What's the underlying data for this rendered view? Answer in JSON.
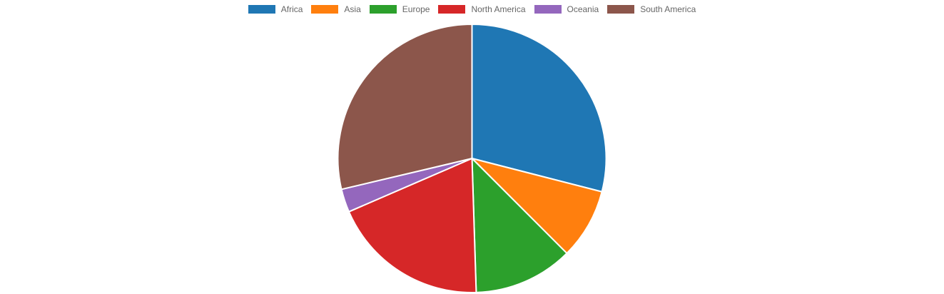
{
  "chart_data": {
    "type": "pie",
    "legend_position": "top",
    "categories": [
      "Africa",
      "Asia",
      "Europe",
      "North America",
      "Oceania",
      "South America"
    ],
    "values": [
      29.0,
      8.5,
      12.0,
      19.0,
      2.8,
      28.7
    ],
    "colors": [
      "#1f77b4",
      "#ff7f0e",
      "#2ca02c",
      "#d62728",
      "#9467bd",
      "#8c564b"
    ],
    "start_angle_deg": 0,
    "direction": "clockwise"
  }
}
